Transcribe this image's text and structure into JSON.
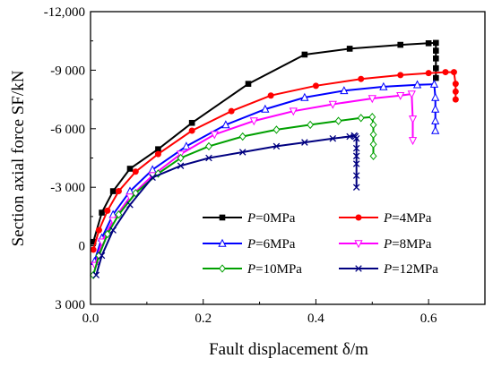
{
  "chart_data": {
    "type": "line",
    "xlabel": "Fault displacement δ/m",
    "ylabel": "Section axial force SF/kN",
    "xlim": [
      0.0,
      0.7
    ],
    "ylim": [
      3000,
      -12000
    ],
    "y_axis_inverted": true,
    "grid": false,
    "legend_position": "bottom-right",
    "x_ticks": [
      0.0,
      0.2,
      0.4,
      0.6
    ],
    "x_tick_labels": [
      "0.0",
      "0.2",
      "0.4",
      "0.6"
    ],
    "y_ticks": [
      -12000,
      -9000,
      -6000,
      -3000,
      0,
      3000
    ],
    "y_tick_labels": [
      "-12,000",
      "-9 000",
      "-6 000",
      "-3 000",
      "0",
      "3 000"
    ],
    "series": [
      {
        "name": "P=0MPa",
        "color": "#000000",
        "marker": "square",
        "x": [
          0.005,
          0.02,
          0.04,
          0.07,
          0.12,
          0.18,
          0.28,
          0.38,
          0.46,
          0.55,
          0.6,
          0.613,
          0.613,
          0.613,
          0.613,
          0.613
        ],
        "y": [
          -200,
          -1700,
          -2800,
          -3950,
          -4950,
          -6300,
          -8300,
          -9800,
          -10100,
          -10300,
          -10380,
          -10400,
          -10000,
          -9600,
          -9100,
          -8600
        ]
      },
      {
        "name": "P=4MPa",
        "color": "#ff0000",
        "marker": "circle",
        "x": [
          0.005,
          0.015,
          0.03,
          0.05,
          0.08,
          0.12,
          0.18,
          0.25,
          0.32,
          0.4,
          0.48,
          0.55,
          0.6,
          0.63,
          0.645,
          0.648,
          0.648,
          0.648
        ],
        "y": [
          200,
          -800,
          -1800,
          -2800,
          -3800,
          -4700,
          -5900,
          -6900,
          -7700,
          -8200,
          -8550,
          -8750,
          -8850,
          -8900,
          -8900,
          -8300,
          -7900,
          -7500
        ]
      },
      {
        "name": "P=6MPa",
        "color": "#0000ff",
        "marker": "triangle",
        "x": [
          0.007,
          0.02,
          0.04,
          0.07,
          0.11,
          0.17,
          0.24,
          0.31,
          0.38,
          0.45,
          0.52,
          0.58,
          0.61,
          0.612,
          0.612,
          0.612,
          0.612
        ],
        "y": [
          800,
          -400,
          -1600,
          -2800,
          -3900,
          -5100,
          -6200,
          -7000,
          -7600,
          -7950,
          -8150,
          -8250,
          -8280,
          -7600,
          -7000,
          -6400,
          -5900
        ]
      },
      {
        "name": "P=8MPa",
        "color": "#ff00ff",
        "marker": "triangle-down",
        "x": [
          0.008,
          0.02,
          0.04,
          0.07,
          0.11,
          0.16,
          0.22,
          0.29,
          0.36,
          0.43,
          0.5,
          0.55,
          0.57,
          0.572,
          0.572
        ],
        "y": [
          1000,
          -200,
          -1300,
          -2500,
          -3600,
          -4700,
          -5700,
          -6400,
          -6900,
          -7250,
          -7550,
          -7700,
          -7780,
          -6500,
          -5400
        ]
      },
      {
        "name": "P=10MPa",
        "color": "#00a000",
        "marker": "diamond",
        "x": [
          0.005,
          0.015,
          0.03,
          0.05,
          0.08,
          0.12,
          0.16,
          0.21,
          0.27,
          0.33,
          0.39,
          0.44,
          0.48,
          0.5,
          0.502,
          0.502,
          0.502,
          0.502
        ],
        "y": [
          1500,
          500,
          -600,
          -1600,
          -2700,
          -3700,
          -4500,
          -5100,
          -5600,
          -5950,
          -6200,
          -6400,
          -6550,
          -6600,
          -6200,
          -5700,
          -5200,
          -4600
        ]
      },
      {
        "name": "P=12MPa",
        "color": "#000080",
        "marker": "x",
        "x": [
          0.01,
          0.02,
          0.04,
          0.07,
          0.11,
          0.16,
          0.21,
          0.27,
          0.33,
          0.38,
          0.43,
          0.46,
          0.468,
          0.47,
          0.472,
          0.472,
          0.472,
          0.472,
          0.472,
          0.472
        ],
        "y": [
          1500,
          500,
          -800,
          -2100,
          -3500,
          -4100,
          -4500,
          -4800,
          -5100,
          -5300,
          -5500,
          -5600,
          -5650,
          -5600,
          -5500,
          -5000,
          -4600,
          -4200,
          -3600,
          -3000
        ]
      }
    ]
  }
}
